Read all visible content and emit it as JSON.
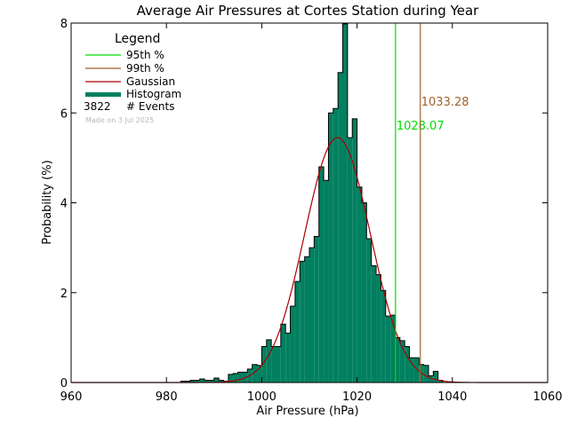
{
  "chart_data": {
    "type": "bar",
    "title": "Average Air Pressures at Cortes Station during Year",
    "xlabel": "Air Pressure (hPa)",
    "ylabel": "Probability (%)",
    "xlim": [
      960,
      1060
    ],
    "ylim": [
      0,
      8
    ],
    "xticks": [
      "960",
      "980",
      "1000",
      "1020",
      "1040",
      "1060"
    ],
    "yticks": [
      "0",
      "2",
      "4",
      "6",
      "8"
    ],
    "bin_width": 1,
    "histogram": {
      "x": [
        983,
        984,
        985,
        986,
        987,
        988,
        989,
        990,
        991,
        992,
        993,
        994,
        995,
        996,
        997,
        998,
        999,
        1000,
        1001,
        1002,
        1003,
        1004,
        1005,
        1006,
        1007,
        1008,
        1009,
        1010,
        1011,
        1012,
        1013,
        1014,
        1015,
        1016,
        1017,
        1018,
        1019,
        1020,
        1021,
        1022,
        1023,
        1024,
        1025,
        1026,
        1027,
        1028,
        1029,
        1030,
        1031,
        1032,
        1033,
        1034,
        1035,
        1036,
        1037
      ],
      "values": [
        0.03,
        0.03,
        0.05,
        0.05,
        0.08,
        0.05,
        0.05,
        0.1,
        0.05,
        0.03,
        0.18,
        0.2,
        0.23,
        0.23,
        0.3,
        0.4,
        0.38,
        0.8,
        0.95,
        0.8,
        0.8,
        1.3,
        1.1,
        1.7,
        2.25,
        2.7,
        2.8,
        3.0,
        3.25,
        4.8,
        4.5,
        6.0,
        6.1,
        6.9,
        7.98,
        5.45,
        5.87,
        4.35,
        4.0,
        3.2,
        2.6,
        2.4,
        2.05,
        1.48,
        1.5,
        1.0,
        0.93,
        0.8,
        0.55,
        0.55,
        0.4,
        0.38,
        0.15,
        0.25,
        0.05
      ]
    },
    "gaussian": {
      "mean": 1015.9,
      "sigma": 6.9,
      "peak": 5.45
    },
    "reference_lines": [
      {
        "name": "95th %",
        "x": 1028.07,
        "label": "1028.07",
        "color": "#00dd00"
      },
      {
        "name": "99th %",
        "x": 1033.28,
        "label": "1033.28",
        "color": "#a0622c"
      }
    ],
    "legend": {
      "title": "Legend",
      "placement": "top-left",
      "entries": [
        {
          "label": "95th %",
          "color": "#00dd00",
          "style": "line"
        },
        {
          "label": "99th %",
          "color": "#a0622c",
          "style": "line"
        },
        {
          "label": "Gaussian",
          "color": "#aa0000",
          "style": "line"
        },
        {
          "label": "Histogram",
          "color": "#008060",
          "style": "thick"
        }
      ],
      "events_count": "3822",
      "events_label": "# Events",
      "made_on": "Made on 3 Jul 2025"
    },
    "colors": {
      "hist_fill": "#008060",
      "hist_edge": "#000000",
      "gaussian": "#aa0000",
      "axes": "#000000"
    }
  }
}
